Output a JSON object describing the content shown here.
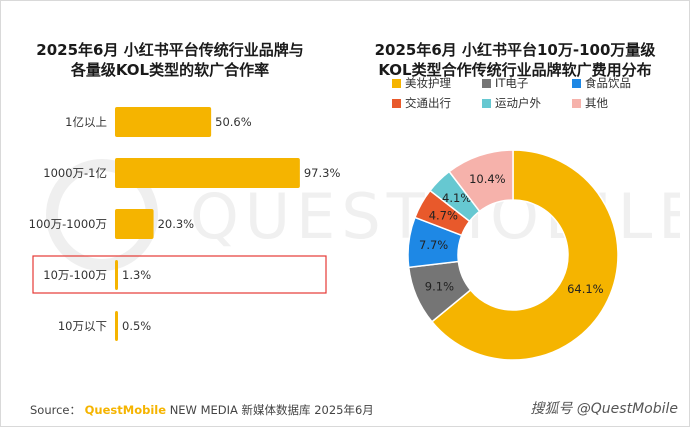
{
  "chart_data": [
    {
      "type": "bar",
      "orientation": "horizontal",
      "title": "2025年6月 小红书平台传统行业品牌与各量级KOL类型的软广合作率",
      "categories": [
        "1亿以上",
        "1000万-1亿",
        "100万-1000万",
        "10万-100万",
        "10万以下"
      ],
      "values": [
        50.6,
        97.3,
        20.3,
        1.3,
        0.5
      ],
      "value_labels": [
        "50.6%",
        "97.3%",
        "20.3%",
        "1.3%",
        "0.5%"
      ],
      "highlighted_category": "10万-100万",
      "xlim": [
        0,
        100
      ],
      "color": "#f5b400"
    },
    {
      "type": "pie",
      "style": "donut",
      "title": "2025年6月 小红书平台10万-100万量级KOL类型合作传统行业品牌软广费用分布",
      "legend_placement": "top",
      "slices": [
        {
          "label": "美妆护理",
          "value": 64.1,
          "value_label": "64.1%",
          "color": "#f5b400"
        },
        {
          "label": "IT电子",
          "value": 9.1,
          "value_label": "9.1%",
          "color": "#757575"
        },
        {
          "label": "食品饮品",
          "value": 7.7,
          "value_label": "7.7%",
          "color": "#1e88e5"
        },
        {
          "label": "交通出行",
          "value": 4.7,
          "value_label": "4.7%",
          "color": "#e8592b"
        },
        {
          "label": "运动户外",
          "value": 4.1,
          "value_label": "4.1%",
          "color": "#66c8d1"
        },
        {
          "label": "其他",
          "value": 10.4,
          "value_label": "10.4%",
          "color": "#f6b2ab"
        }
      ]
    }
  ],
  "left_title_lines": [
    "2025年6月 小红书平台传统行业品牌与",
    "各量级KOL类型的软广合作率"
  ],
  "right_title_lines": [
    "2025年6月 小红书平台10万-100万量级",
    "KOL类型合作传统行业品牌软广费用分布"
  ],
  "footer": {
    "source_prefix": "Source：",
    "source_brand": "QuestMobile",
    "source_rest": "NEW MEDIA 新媒体数据库 2025年6月",
    "credit": "搜狐号 @QuestMobile"
  },
  "watermark_text": "QUESTMOBILE"
}
